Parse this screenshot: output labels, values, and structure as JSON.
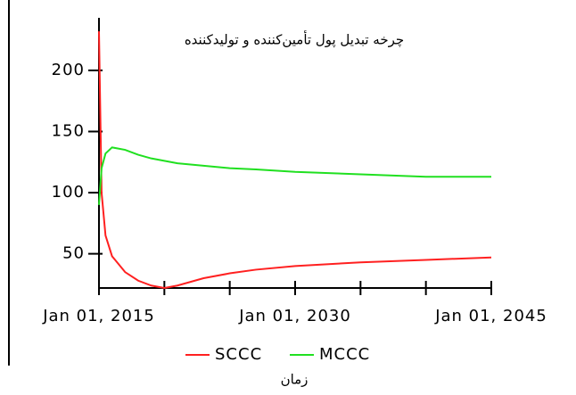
{
  "chart_data": {
    "type": "line",
    "title": "چرخه تبدیل پول تأمین‌کننده و تولیدکننده",
    "x_label": "زمان",
    "x": [
      2015,
      2015.2,
      2015.5,
      2016,
      2017,
      2018,
      2019,
      2020,
      2021,
      2022,
      2023,
      2025,
      2027,
      2030,
      2035,
      2040,
      2045
    ],
    "series": [
      {
        "name": "SCCC",
        "color": "#ff2020",
        "values": [
          232,
          100,
          65,
          48,
          35,
          28,
          24,
          22,
          24,
          27,
          30,
          34,
          37,
          40,
          43,
          45,
          47
        ]
      },
      {
        "name": "MCCC",
        "color": "#20e020",
        "values": [
          90,
          120,
          132,
          137,
          135,
          131,
          128,
          126,
          124,
          123,
          122,
          120,
          119,
          117,
          115,
          113,
          113
        ]
      }
    ],
    "xlim": [
      2015,
      2045
    ],
    "xticks": [
      {
        "value": 2015,
        "label": "Jan 01, 2015"
      },
      {
        "value": 2030,
        "label": "Jan 01, 2030"
      },
      {
        "value": 2045,
        "label": "Jan 01, 2045"
      }
    ],
    "xticks_minor": [
      2020,
      2025,
      2035,
      2040
    ],
    "ylim": [
      22,
      243
    ],
    "yticks": [
      50,
      100,
      150,
      200
    ]
  }
}
